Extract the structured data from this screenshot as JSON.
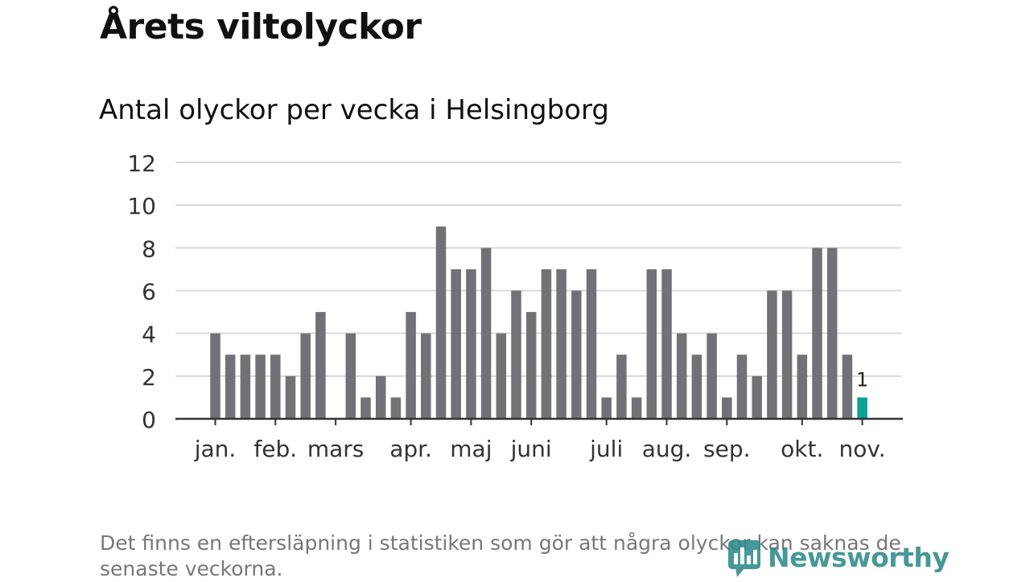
{
  "title": "Årets viltolyckor",
  "subtitle": "Antal olyckor per vecka i Helsingborg",
  "footnote": "Det finns en eftersläpning i statistiken som gör att några olyckor kan saknas de senaste veckorna.",
  "brand": "Newsworthy",
  "colors": {
    "bar": "#727176",
    "highlight": "#0aa295",
    "grid": "#d9d9d9",
    "axis": "#333333",
    "brand": "#2e8a8a"
  },
  "chart_data": {
    "type": "bar",
    "ylim": [
      0,
      12
    ],
    "yticks": [
      0,
      2,
      4,
      6,
      8,
      10,
      12
    ],
    "grid": true,
    "values": [
      4,
      3,
      3,
      3,
      3,
      2,
      4,
      5,
      0,
      4,
      1,
      2,
      1,
      5,
      4,
      9,
      7,
      7,
      8,
      4,
      6,
      5,
      7,
      7,
      6,
      7,
      1,
      3,
      1,
      7,
      7,
      4,
      3,
      4,
      1,
      3,
      2,
      6,
      6,
      3,
      8,
      8,
      3,
      1
    ],
    "highlight_index": 43,
    "highlight_label": "1",
    "month_labels": [
      {
        "label": "jan.",
        "week": 0
      },
      {
        "label": "feb.",
        "week": 4
      },
      {
        "label": "mars",
        "week": 8
      },
      {
        "label": "apr.",
        "week": 13
      },
      {
        "label": "maj",
        "week": 17
      },
      {
        "label": "juni",
        "week": 21
      },
      {
        "label": "juli",
        "week": 26
      },
      {
        "label": "aug.",
        "week": 30
      },
      {
        "label": "sep.",
        "week": 34
      },
      {
        "label": "okt.",
        "week": 39
      },
      {
        "label": "nov.",
        "week": 43
      }
    ]
  }
}
